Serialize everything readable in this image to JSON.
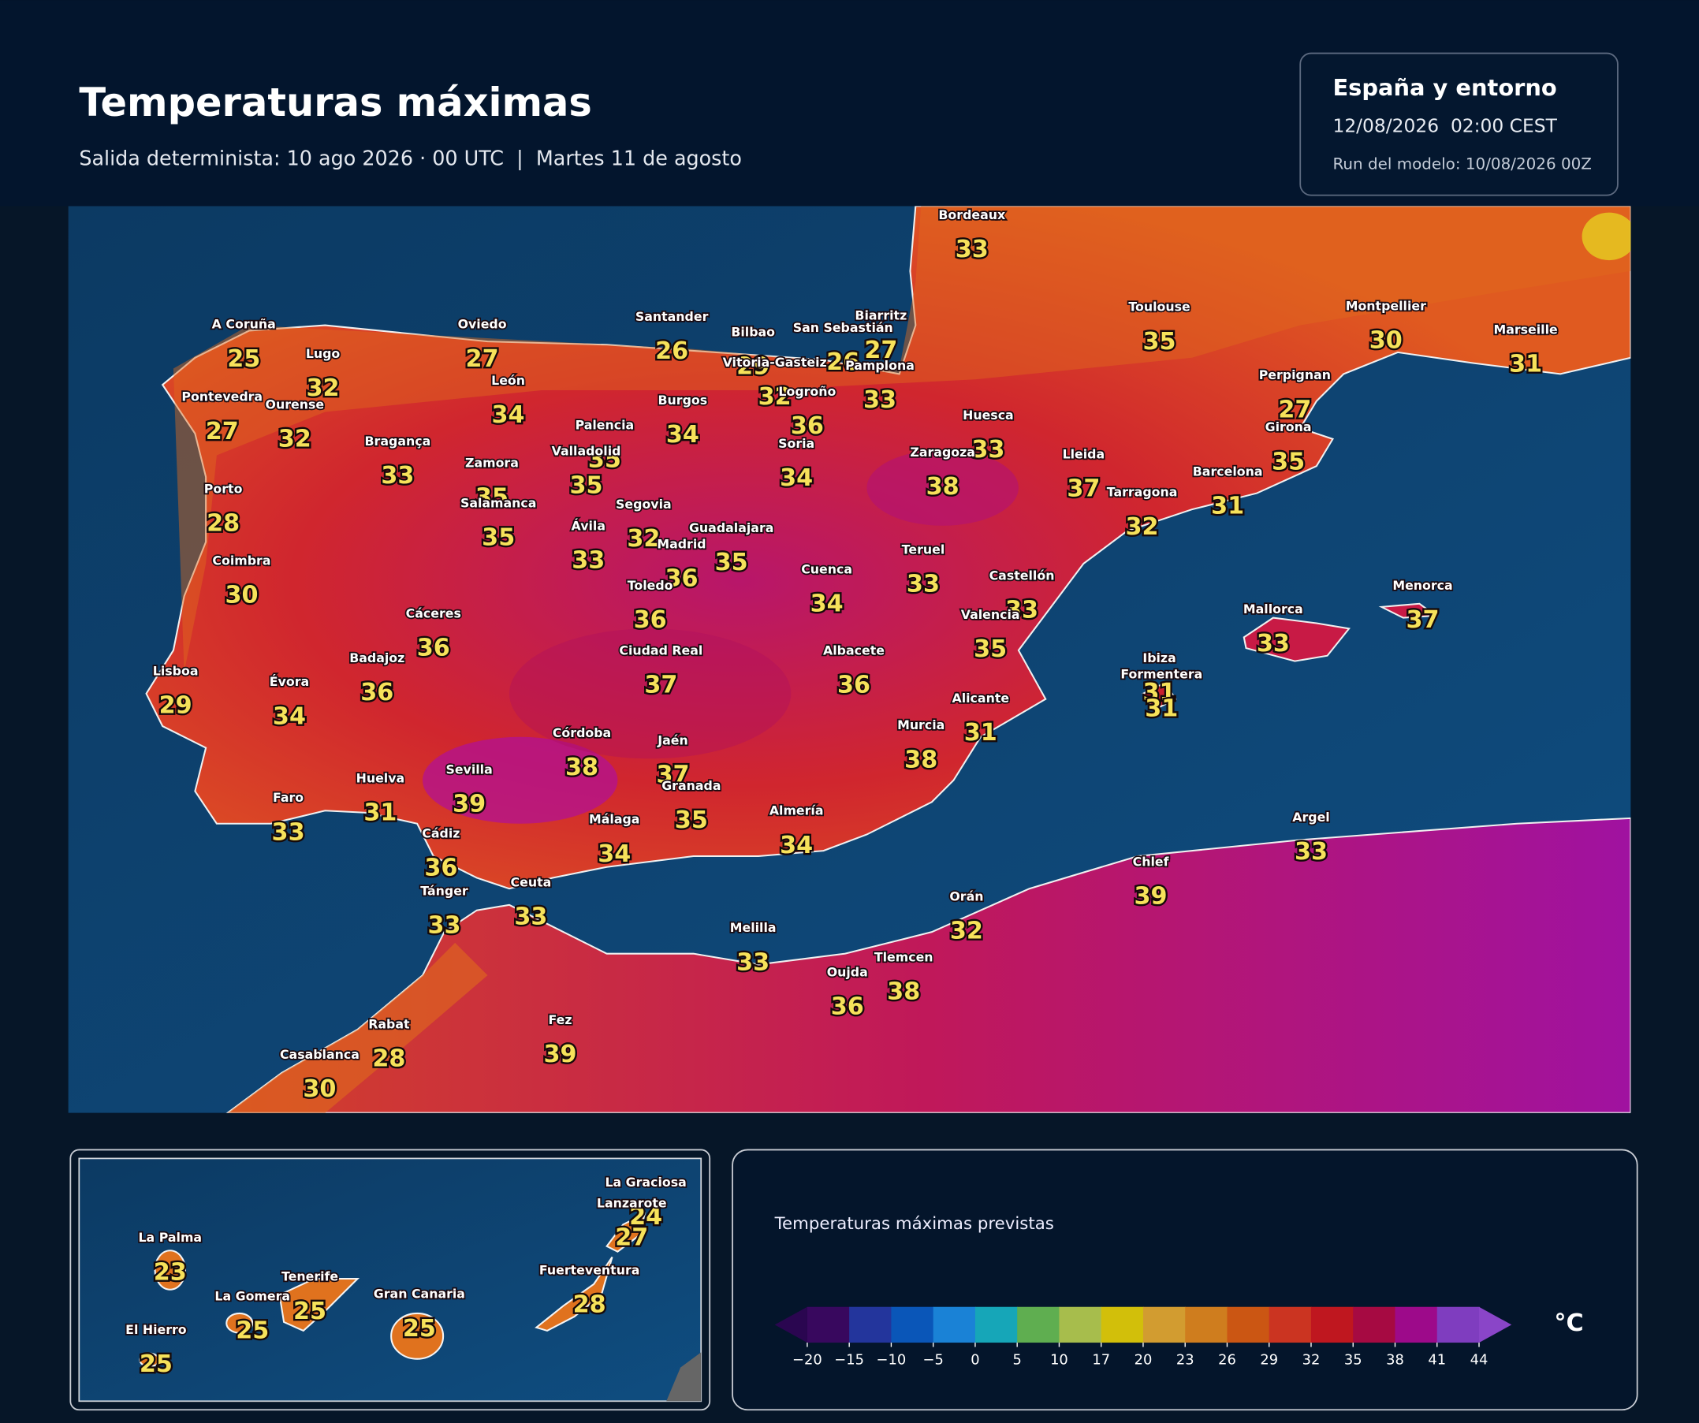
{
  "header": {
    "title": "Temperaturas máximas",
    "subtitle": "Salida determinista: 10 ago 2026 · 00 UTC  |  Martes 11 de agosto",
    "region": "España y entorno",
    "valid_time": "12/08/2026  02:00 CEST",
    "run": "Run del modelo: 10/08/2026 00Z"
  },
  "map": {
    "cities": [
      {
        "name": "Bordeaux",
        "temp": 33
      },
      {
        "name": "A Coruña",
        "temp": 25
      },
      {
        "name": "Lugo",
        "temp": 32
      },
      {
        "name": "Oviedo",
        "temp": 27
      },
      {
        "name": "Santander",
        "temp": 26
      },
      {
        "name": "Bilbao",
        "temp": 29
      },
      {
        "name": "San Sebastián",
        "temp": 26
      },
      {
        "name": "Biarritz",
        "temp": 27
      },
      {
        "name": "Toulouse",
        "temp": 35
      },
      {
        "name": "Montpellier",
        "temp": 30
      },
      {
        "name": "Marseille",
        "temp": 31
      },
      {
        "name": "Pontevedra",
        "temp": 27
      },
      {
        "name": "Ourense",
        "temp": 32
      },
      {
        "name": "León",
        "temp": 34
      },
      {
        "name": "Vitoria-Gasteiz",
        "temp": 32
      },
      {
        "name": "Pamplona",
        "temp": 33
      },
      {
        "name": "Logroño",
        "temp": 36
      },
      {
        "name": "Burgos",
        "temp": 34
      },
      {
        "name": "Palencia",
        "temp": 35
      },
      {
        "name": "Bragança",
        "temp": 33
      },
      {
        "name": "Soria",
        "temp": 34
      },
      {
        "name": "Huesca",
        "temp": 33
      },
      {
        "name": "Zaragoza",
        "temp": 38
      },
      {
        "name": "Perpignan",
        "temp": 27
      },
      {
        "name": "Girona",
        "temp": 35
      },
      {
        "name": "Lleida",
        "temp": 37
      },
      {
        "name": "Barcelona",
        "temp": 31
      },
      {
        "name": "Tarragona",
        "temp": 32
      },
      {
        "name": "Zamora",
        "temp": 35
      },
      {
        "name": "Valladolid",
        "temp": 35
      },
      {
        "name": "Porto",
        "temp": 28
      },
      {
        "name": "Salamanca",
        "temp": 35
      },
      {
        "name": "Segovia",
        "temp": 32
      },
      {
        "name": "Ávila",
        "temp": 33
      },
      {
        "name": "Guadalajara",
        "temp": 35
      },
      {
        "name": "Madrid",
        "temp": 36
      },
      {
        "name": "Coimbra",
        "temp": 30
      },
      {
        "name": "Teruel",
        "temp": 33
      },
      {
        "name": "Cuenca",
        "temp": 34
      },
      {
        "name": "Castellón",
        "temp": 33
      },
      {
        "name": "Toledo",
        "temp": 36
      },
      {
        "name": "Cáceres",
        "temp": 36
      },
      {
        "name": "Valencia",
        "temp": 35
      },
      {
        "name": "Mallorca",
        "temp": 33
      },
      {
        "name": "Menorca",
        "temp": 37
      },
      {
        "name": "Badajoz",
        "temp": 36
      },
      {
        "name": "Ciudad Real",
        "temp": 37
      },
      {
        "name": "Albacete",
        "temp": 36
      },
      {
        "name": "Lisboa",
        "temp": 29
      },
      {
        "name": "Évora",
        "temp": 34
      },
      {
        "name": "Ibiza",
        "temp": 31
      },
      {
        "name": "Formentera",
        "temp": 31
      },
      {
        "name": "Alicante",
        "temp": 31
      },
      {
        "name": "Murcia",
        "temp": 38
      },
      {
        "name": "Córdoba",
        "temp": 38
      },
      {
        "name": "Jaén",
        "temp": 37
      },
      {
        "name": "Huelva",
        "temp": 31
      },
      {
        "name": "Sevilla",
        "temp": 39
      },
      {
        "name": "Granada",
        "temp": 35
      },
      {
        "name": "Faro",
        "temp": 33
      },
      {
        "name": "Almería",
        "temp": 34
      },
      {
        "name": "Málaga",
        "temp": 34
      },
      {
        "name": "Cádiz",
        "temp": 36
      },
      {
        "name": "Tánger",
        "temp": 33
      },
      {
        "name": "Ceuta",
        "temp": 33
      },
      {
        "name": "Melilla",
        "temp": 33
      },
      {
        "name": "Orán",
        "temp": 32
      },
      {
        "name": "Chlef",
        "temp": 39
      },
      {
        "name": "Argel",
        "temp": 33
      },
      {
        "name": "Oujda",
        "temp": 36
      },
      {
        "name": "Tlemcen",
        "temp": 38
      },
      {
        "name": "Rabat",
        "temp": 28
      },
      {
        "name": "Fez",
        "temp": 39
      },
      {
        "name": "Casablanca",
        "temp": 30
      }
    ]
  },
  "canarias": {
    "cities": [
      {
        "name": "La Graciosa",
        "temp": 24
      },
      {
        "name": "Lanzarote",
        "temp": 27
      },
      {
        "name": "La Palma",
        "temp": 23
      },
      {
        "name": "Tenerife",
        "temp": 25
      },
      {
        "name": "La Gomera",
        "temp": 25
      },
      {
        "name": "Gran Canaria",
        "temp": 25
      },
      {
        "name": "Fuerteventura",
        "temp": 28
      },
      {
        "name": "El Hierro",
        "temp": 25
      }
    ]
  },
  "legend": {
    "title": "Temperaturas máximas previstas",
    "unit": "°C",
    "ticks": [
      {
        "value": -20,
        "label": "−20"
      },
      {
        "value": -15,
        "label": "−15"
      },
      {
        "value": -10,
        "label": "−10"
      },
      {
        "value": -5,
        "label": "−5"
      },
      0,
      5,
      10,
      17,
      20,
      23,
      26,
      29,
      32,
      35,
      38,
      41,
      44
    ],
    "colors": [
      "#38085e",
      "#23359c",
      "#0a56b8",
      "#1a82d6",
      "#16a6b8",
      "#5fae50",
      "#a7bd4c",
      "#d2bf0a",
      "#d29c30",
      "#cf7d1e",
      "#cb5613",
      "#cb3421",
      "#bf171f",
      "#a60a42",
      "#9d0a8a",
      "#7f3dbf"
    ],
    "extend_colors": [
      "#2a0650",
      "#8a45c8"
    ]
  }
}
